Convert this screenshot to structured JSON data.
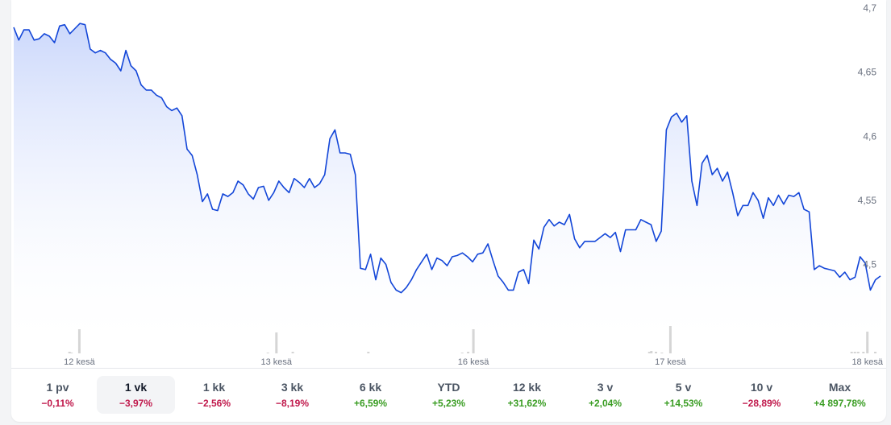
{
  "chart_data": {
    "type": "area",
    "title": "",
    "xlabel": "",
    "ylabel": "",
    "ylim": [
      4.43,
      4.7
    ],
    "y_ticks": [
      "4,7",
      "4,65",
      "4,6",
      "4,55",
      "4,5"
    ],
    "y_tick_values": [
      4.7,
      4.65,
      4.6,
      4.55,
      4.5
    ],
    "x_tick_labels": [
      "12 kesä",
      "13 kesä",
      "16 kesä",
      "17 kesä",
      "18 kesä"
    ],
    "x_tick_positions": [
      10,
      40,
      70,
      100,
      130
    ],
    "x_range": [
      0,
      132
    ],
    "grid": false,
    "line_color": "#1346d8",
    "area_color": "#c9d6fb",
    "volume_color": "#d4d4d4",
    "series": [
      {
        "values": [
          4.685,
          4.675,
          4.683,
          4.683,
          4.675,
          4.676,
          4.68,
          4.678,
          4.673,
          4.686,
          4.687,
          4.68,
          4.684,
          4.688,
          4.687,
          4.668,
          4.665,
          4.667,
          4.665,
          4.66,
          4.657,
          4.651,
          4.667,
          4.655,
          4.651,
          4.64,
          4.636,
          4.636,
          4.632,
          4.63,
          4.623,
          4.62,
          4.622,
          4.616,
          4.59,
          4.585,
          4.57,
          4.549,
          4.555,
          4.543,
          4.542,
          4.555,
          4.553,
          4.556,
          4.565,
          4.562,
          4.555,
          4.551,
          4.56,
          4.561,
          4.55,
          4.556,
          4.565,
          4.56,
          4.556,
          4.567,
          4.564,
          4.56,
          4.567,
          4.56,
          4.563,
          4.57,
          4.598,
          4.605,
          4.587,
          4.587,
          4.586,
          4.57,
          4.497,
          4.496,
          4.508,
          4.488,
          4.505,
          4.5,
          4.486,
          4.48,
          4.478,
          4.482,
          4.488,
          4.496,
          4.502,
          4.508,
          4.496,
          4.505,
          4.503,
          4.499,
          4.506,
          4.507,
          4.509,
          4.506,
          4.502,
          4.508,
          4.509,
          4.516,
          4.503,
          4.491,
          4.486,
          4.48,
          4.48,
          4.494,
          4.496,
          4.485,
          4.519,
          4.512,
          4.529,
          4.535,
          4.53,
          4.533,
          4.531,
          4.539,
          4.52,
          4.513,
          4.518,
          4.518,
          4.518,
          4.521,
          4.524,
          4.521,
          4.525,
          4.51,
          4.527,
          4.527,
          4.527,
          4.535,
          4.533,
          4.531,
          4.518,
          4.526,
          4.605,
          4.615,
          4.618,
          4.611,
          4.616,
          4.565,
          4.546,
          4.579,
          4.585,
          4.57,
          4.575,
          4.565,
          4.572,
          4.556,
          4.538,
          4.546,
          4.546,
          4.556,
          4.55,
          4.536,
          4.552,
          4.546,
          4.554,
          4.547,
          4.554,
          4.553,
          4.556,
          4.543,
          4.541,
          4.496,
          4.499,
          4.497,
          4.496,
          4.495,
          4.49,
          4.494,
          4.488,
          4.49,
          4.506,
          4.501,
          4.48,
          4.488,
          4.491
        ]
      }
    ],
    "volume_bars": [
      {
        "x": 10,
        "h": 30
      },
      {
        "x": 40,
        "h": 26
      },
      {
        "x": 70,
        "h": 30
      },
      {
        "x": 100,
        "h": 34
      },
      {
        "x": 130,
        "h": 27
      },
      {
        "x": 8.5,
        "h": 2
      },
      {
        "x": 8.8,
        "h": 1
      },
      {
        "x": 38.7,
        "h": 1
      },
      {
        "x": 42.5,
        "h": 2
      },
      {
        "x": 54,
        "h": 2
      },
      {
        "x": 68.3,
        "h": 1
      },
      {
        "x": 69.2,
        "h": 2
      },
      {
        "x": 96.8,
        "h": 2
      },
      {
        "x": 97.1,
        "h": 3
      },
      {
        "x": 97.8,
        "h": 2
      },
      {
        "x": 98.7,
        "h": 1
      },
      {
        "x": 127.6,
        "h": 2
      },
      {
        "x": 128.1,
        "h": 2
      },
      {
        "x": 128.6,
        "h": 2
      },
      {
        "x": 129.4,
        "h": 2
      },
      {
        "x": 131.2,
        "h": 2
      }
    ]
  },
  "periods": [
    {
      "label": "1 pv",
      "change": "−0,11%",
      "dir": "neg",
      "active": false
    },
    {
      "label": "1 vk",
      "change": "−3,97%",
      "dir": "neg",
      "active": true
    },
    {
      "label": "1 kk",
      "change": "−2,56%",
      "dir": "neg",
      "active": false
    },
    {
      "label": "3 kk",
      "change": "−8,19%",
      "dir": "neg",
      "active": false
    },
    {
      "label": "6 kk",
      "change": "+6,59%",
      "dir": "pos",
      "active": false
    },
    {
      "label": "YTD",
      "change": "+5,23%",
      "dir": "pos",
      "active": false
    },
    {
      "label": "12 kk",
      "change": "+31,62%",
      "dir": "pos",
      "active": false
    },
    {
      "label": "3 v",
      "change": "+2,04%",
      "dir": "pos",
      "active": false
    },
    {
      "label": "5 v",
      "change": "+14,53%",
      "dir": "pos",
      "active": false
    },
    {
      "label": "10 v",
      "change": "−28,89%",
      "dir": "neg",
      "active": false
    },
    {
      "label": "Max",
      "change": "+4 897,78%",
      "dir": "pos",
      "active": false
    }
  ]
}
